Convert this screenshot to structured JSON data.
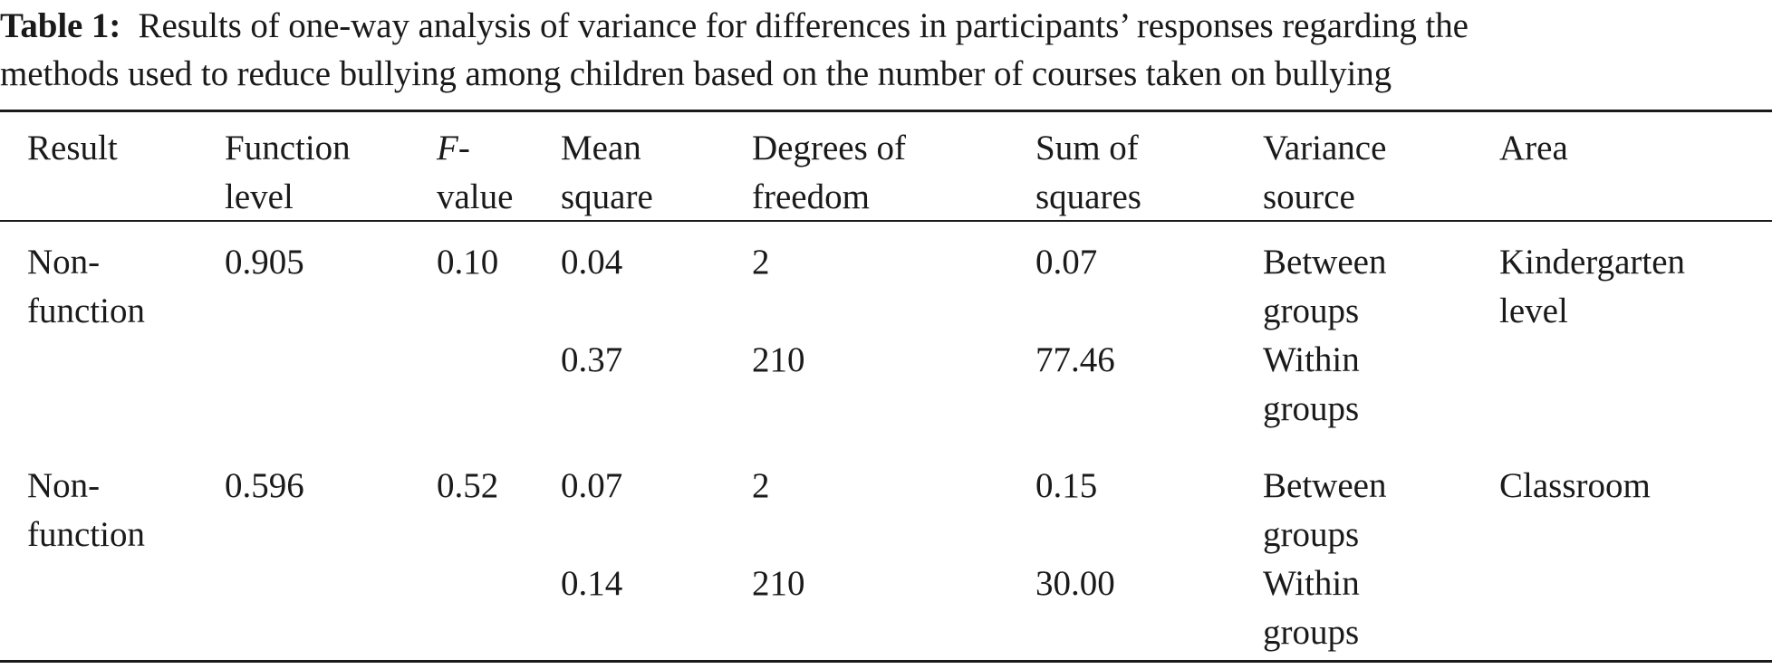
{
  "caption": {
    "label": "Table 1:",
    "line1_text": "Results of one-way analysis of variance for differences in participants’ responses regarding the",
    "line2_text": "methods used to reduce bullying among children based on the number of courses taken on bullying"
  },
  "table": {
    "headers": {
      "result": "Result",
      "function_level": "Function level",
      "f_value_f": "F",
      "f_value_rest": "-value",
      "mean_square": "Mean square",
      "degrees_of_freedom": "Degrees of freedom",
      "sum_of_squares": "Sum of squares",
      "variance_source": "Variance source",
      "area": "Area"
    },
    "rows": [
      {
        "result": "Non-function",
        "function_level": "0.905",
        "f_value": "0.10",
        "mean_square": "0.04",
        "degrees_of_freedom": "2",
        "sum_of_squares": "0.07",
        "variance_source": "Between groups",
        "area": "Kindergarten level"
      },
      {
        "result": "",
        "function_level": "",
        "f_value": "",
        "mean_square": "0.37",
        "degrees_of_freedom": "210",
        "sum_of_squares": "77.46",
        "variance_source": "Within groups",
        "area": ""
      },
      {
        "result": "Non-function",
        "function_level": "0.596",
        "f_value": "0.52",
        "mean_square": "0.07",
        "degrees_of_freedom": "2",
        "sum_of_squares": "0.15",
        "variance_source": "Between groups",
        "area": "Classroom"
      },
      {
        "result": "",
        "function_level": "",
        "f_value": "",
        "mean_square": "0.14",
        "degrees_of_freedom": "210",
        "sum_of_squares": "30.00",
        "variance_source": "Within groups",
        "area": ""
      }
    ]
  }
}
